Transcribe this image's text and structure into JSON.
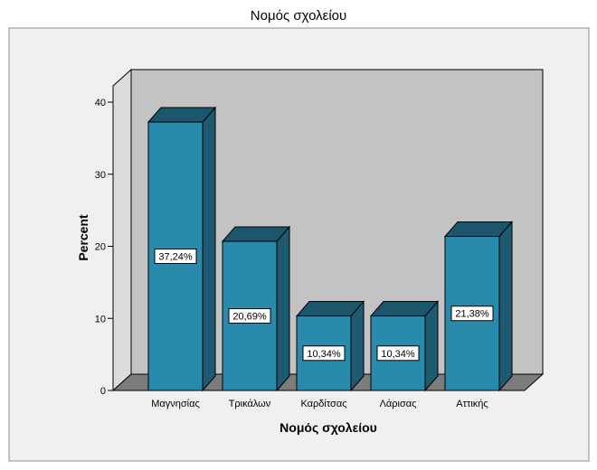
{
  "chart_data": {
    "type": "bar",
    "title": "Νομός σχολείου",
    "xlabel": "Νομός σχολείου",
    "ylabel": "Percent",
    "categories": [
      "Μαγνησίας",
      "Τρικάλων",
      "Καρδίτσας",
      "Λάρισας",
      "Αττικής"
    ],
    "values": [
      37.24,
      20.69,
      10.34,
      10.34,
      21.38
    ],
    "data_labels": [
      "37,24%",
      "20,69%",
      "10,34%",
      "10,34%",
      "21,38%"
    ],
    "yticks": [
      "0",
      "10",
      "20",
      "30",
      "40"
    ],
    "ylim": [
      0,
      40
    ],
    "grid": false,
    "legend": "none",
    "style": "3d",
    "colors": {
      "bar_front": "#2a8aab",
      "bar_side": "#1e5a72",
      "bar_top": "#1c566d",
      "plot_back": "#c3c3c3",
      "plot_floor": "#7c7c7c",
      "outer_panel": "#f0f0f0"
    }
  }
}
